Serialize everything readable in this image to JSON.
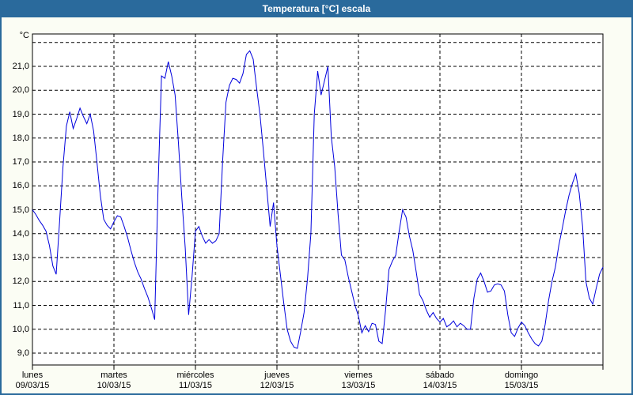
{
  "window": {
    "title": "Temperatura [°C] escala"
  },
  "colors": {
    "titlebar_bg": "#2A6A9C",
    "titlebar_text": "#FFFFFF",
    "window_border": "#2A6A9C",
    "window_bg": "#FBFDF4",
    "plot_bg": "#FFFFFF",
    "plot_border": "#000000",
    "grid": "#000000",
    "axis_text": "#000000",
    "series_line": "#0000DD"
  },
  "chart_data": {
    "type": "line",
    "title": "Temperatura [°C] escala",
    "grid": "dashed",
    "legend": "none",
    "y_axis": {
      "unit_label": "°C",
      "min": 9,
      "max": 22,
      "tick_step": 1,
      "tick_labels": [
        "9,0",
        "10,0",
        "11,0",
        "12,0",
        "13,0",
        "14,0",
        "15,0",
        "16,0",
        "17,0",
        "18,0",
        "19,0",
        "20,0",
        "21,0"
      ]
    },
    "x_axis": {
      "days": [
        {
          "name": "lunes",
          "date": "09/03/15"
        },
        {
          "name": "martes",
          "date": "10/03/15"
        },
        {
          "name": "miércoles",
          "date": "11/03/15"
        },
        {
          "name": "jueves",
          "date": "12/03/15"
        },
        {
          "name": "viernes",
          "date": "13/03/15"
        },
        {
          "name": "sábado",
          "date": "14/03/15"
        },
        {
          "name": "domingo",
          "date": "15/03/15"
        }
      ]
    },
    "series": [
      {
        "name": "Temperatura [°C]",
        "sampling_hours": 1,
        "values": [
          15.0,
          14.8,
          14.55,
          14.35,
          14.1,
          13.5,
          12.65,
          12.3,
          14.5,
          16.8,
          18.5,
          19.1,
          18.4,
          18.8,
          19.25,
          18.9,
          18.6,
          19.0,
          18.3,
          17.0,
          15.6,
          14.6,
          14.35,
          14.2,
          14.5,
          14.75,
          14.7,
          14.3,
          13.85,
          13.3,
          12.8,
          12.4,
          12.1,
          11.7,
          11.35,
          10.9,
          10.4,
          16.0,
          20.6,
          20.5,
          21.2,
          20.6,
          19.8,
          17.8,
          15.5,
          13.4,
          10.6,
          12.2,
          14.1,
          14.3,
          13.9,
          13.6,
          13.75,
          13.6,
          13.7,
          14.0,
          17.0,
          19.5,
          20.2,
          20.5,
          20.45,
          20.3,
          20.7,
          21.5,
          21.65,
          21.3,
          20.1,
          19.0,
          17.5,
          15.9,
          14.3,
          15.3,
          13.5,
          12.3,
          11.1,
          10.0,
          9.5,
          9.25,
          9.2,
          9.9,
          10.7,
          12.1,
          14.0,
          19.0,
          20.8,
          19.8,
          20.4,
          21.0,
          18.05,
          16.8,
          14.8,
          13.1,
          12.9,
          12.2,
          11.6,
          11.0,
          10.55,
          9.85,
          10.15,
          9.9,
          10.25,
          10.2,
          9.5,
          9.4,
          10.8,
          12.5,
          12.85,
          13.1,
          14.1,
          15.0,
          14.7,
          13.9,
          13.3,
          12.4,
          11.45,
          11.2,
          10.8,
          10.5,
          10.7,
          10.45,
          10.3,
          10.45,
          10.1,
          10.2,
          10.35,
          10.1,
          10.25,
          10.15,
          10.0,
          10.0,
          11.3,
          12.1,
          12.35,
          12.0,
          11.55,
          11.6,
          11.85,
          11.9,
          11.85,
          11.6,
          10.6,
          9.85,
          9.7,
          10.05,
          10.3,
          10.15,
          9.85,
          9.6,
          9.4,
          9.3,
          9.5,
          10.2,
          11.2,
          12.0,
          12.6,
          13.5,
          14.2,
          14.95,
          15.6,
          16.1,
          16.5,
          15.7,
          14.3,
          12.0,
          11.3,
          11.05,
          11.7,
          12.3,
          12.6
        ]
      }
    ]
  }
}
